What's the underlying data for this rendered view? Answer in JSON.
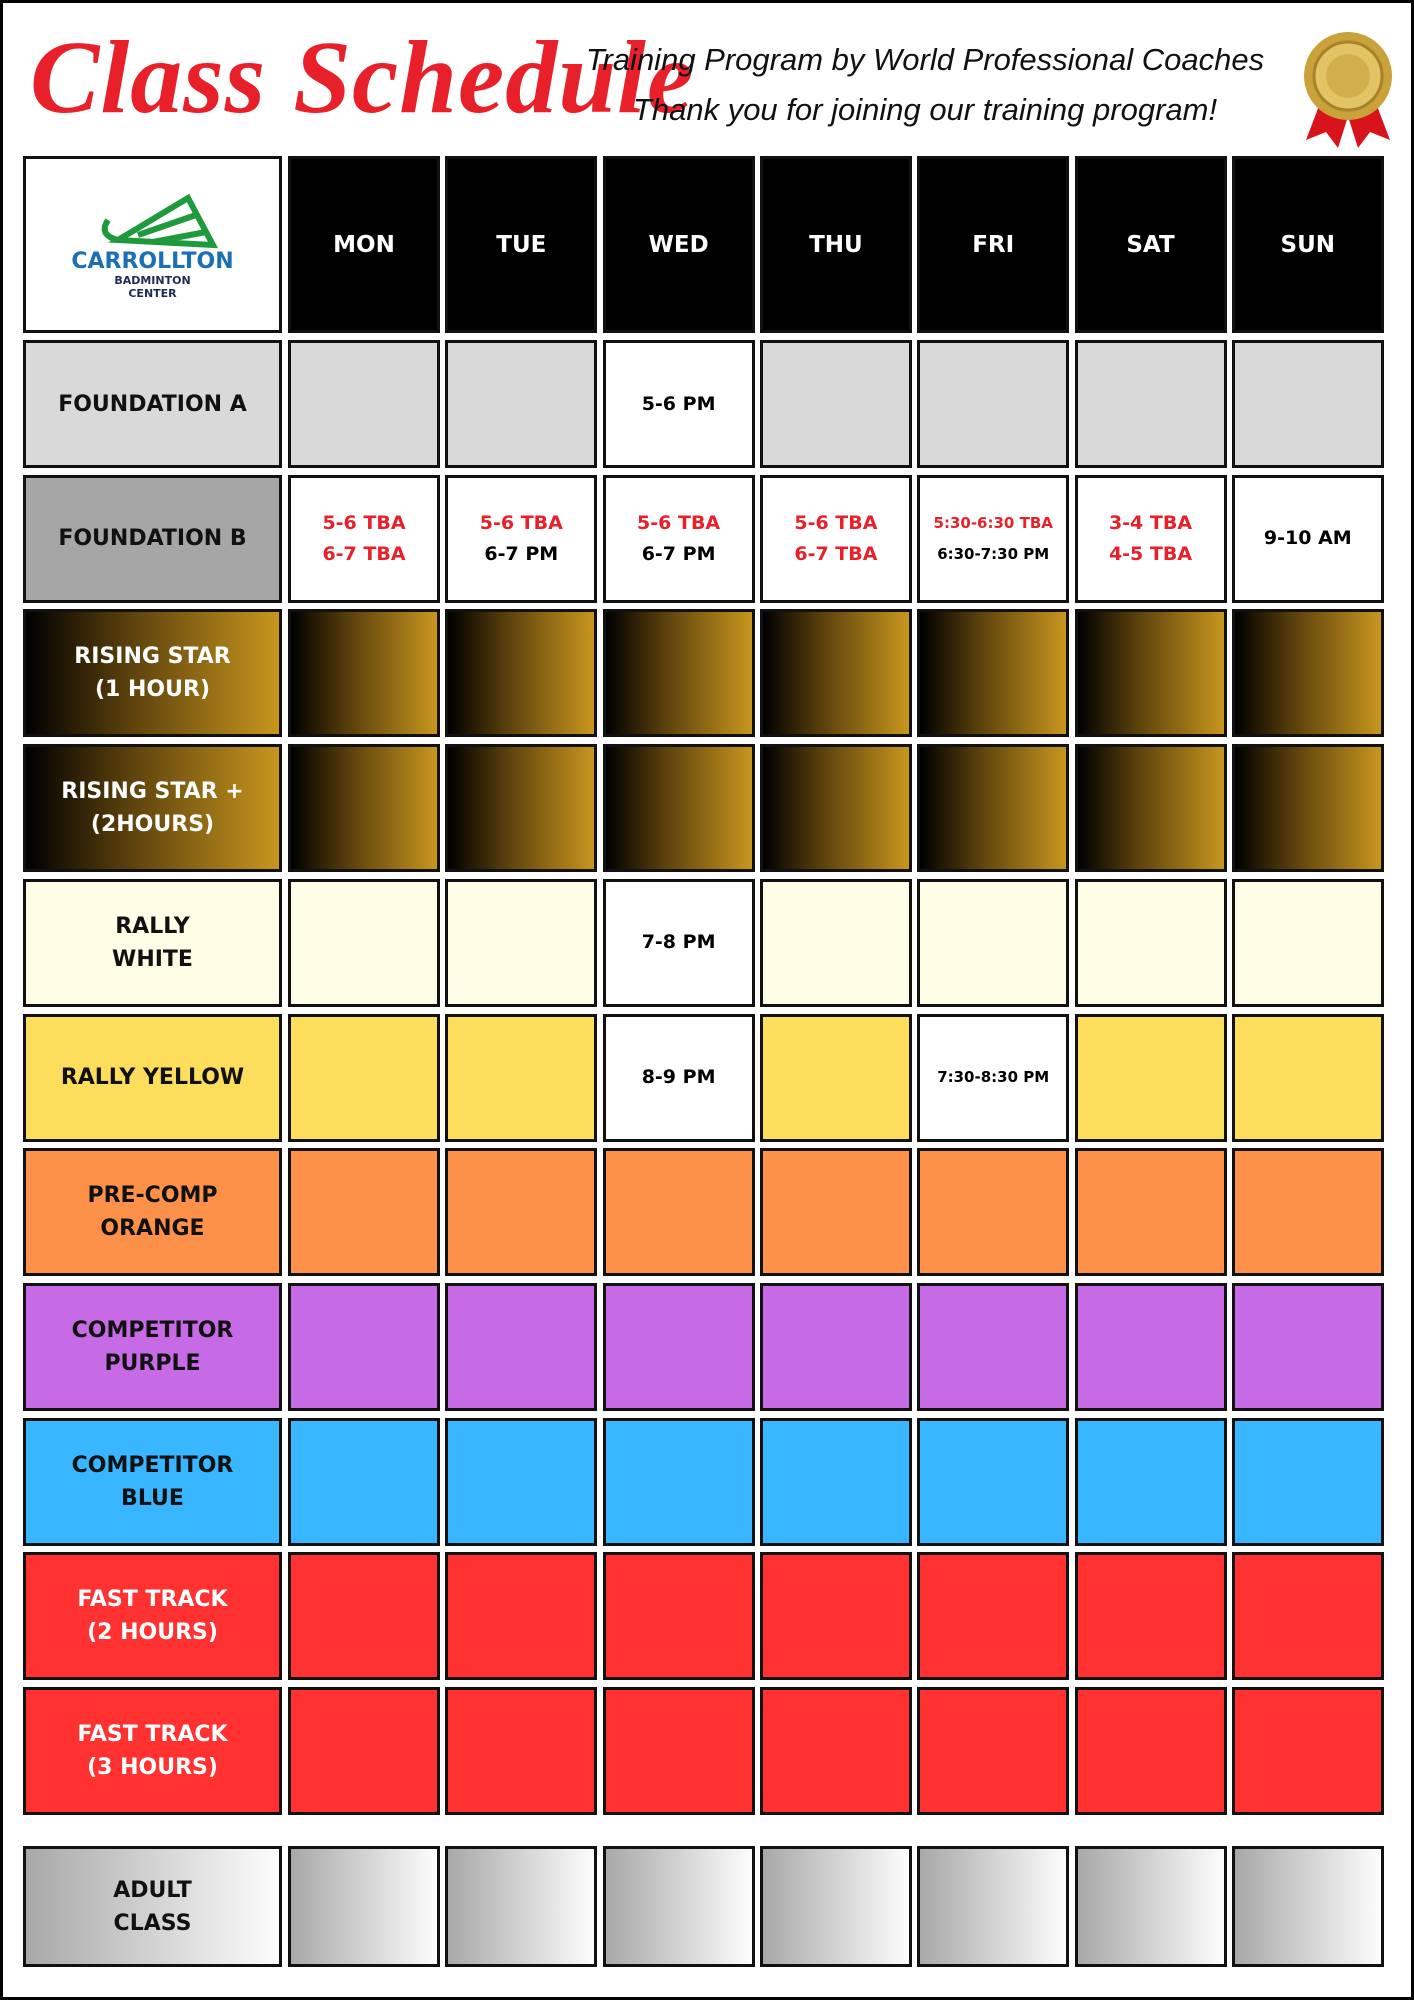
{
  "header": {
    "title": "Class Schedule",
    "subtitle_lines": [
      "Training Program by World Professional Coaches",
      "Thank you for joining our training program!"
    ]
  },
  "logo": {
    "name": "CARROLLTON",
    "subtitle_lines": [
      "BADMINTON",
      "CENTER"
    ]
  },
  "table": {
    "days": [
      "MON",
      "TUE",
      "WED",
      "THU",
      "FRI",
      "SAT",
      "SUN"
    ],
    "rows": [
      {
        "label": [
          "FOUNDATION A"
        ],
        "cells": [
          [],
          [],
          [
            {
              "text": "5-6 PM",
              "color": "#000000"
            }
          ],
          [],
          [],
          [],
          []
        ]
      },
      {
        "label": [
          "FOUNDATION B"
        ],
        "cells": [
          [
            {
              "text": "5-6 TBA",
              "color": "#e8202a"
            },
            {
              "text": "6-7 TBA",
              "color": "#e8202a"
            }
          ],
          [
            {
              "text": "5-6 TBA",
              "color": "#e8202a"
            },
            {
              "text": "6-7 PM",
              "color": "#000000"
            }
          ],
          [
            {
              "text": "5-6 TBA",
              "color": "#e8202a"
            },
            {
              "text": "6-7 PM",
              "color": "#000000"
            }
          ],
          [
            {
              "text": "5-6 TBA",
              "color": "#e8202a"
            },
            {
              "text": "6-7 TBA",
              "color": "#e8202a"
            }
          ],
          [
            {
              "text": "5:30-6:30 TBA",
              "color": "#e8202a"
            },
            {
              "text": "6:30-7:30 PM",
              "color": "#000000"
            }
          ],
          [
            {
              "text": "3-4 TBA",
              "color": "#e8202a"
            },
            {
              "text": "4-5 TBA",
              "color": "#e8202a"
            }
          ],
          [
            {
              "text": "9-10 AM",
              "color": "#000000"
            }
          ]
        ]
      },
      {
        "label": [
          "RISING STAR",
          "(1 HOUR)"
        ],
        "cells": [
          [],
          [],
          [],
          [],
          [],
          [],
          []
        ]
      },
      {
        "label": [
          "RISING STAR +",
          "(2HOURS)"
        ],
        "cells": [
          [],
          [],
          [],
          [],
          [],
          [],
          []
        ]
      },
      {
        "label": [
          "RALLY",
          "WHITE"
        ],
        "cells": [
          [],
          [],
          [
            {
              "text": "7-8 PM",
              "color": "#000000"
            }
          ],
          [],
          [],
          [],
          []
        ]
      },
      {
        "label": [
          "RALLY YELLOW"
        ],
        "cells": [
          [],
          [],
          [
            {
              "text": "8-9 PM",
              "color": "#000000"
            }
          ],
          [],
          [
            {
              "text": "7:30-8:30 PM",
              "color": "#000000"
            }
          ],
          [],
          []
        ]
      },
      {
        "label": [
          "PRE-COMP",
          "ORANGE"
        ],
        "cells": [
          [],
          [],
          [],
          [],
          [],
          [],
          []
        ]
      },
      {
        "label": [
          "COMPETITOR",
          "PURPLE"
        ],
        "cells": [
          [],
          [],
          [],
          [],
          [],
          [],
          []
        ]
      },
      {
        "label": [
          "COMPETITOR",
          "BLUE"
        ],
        "cells": [
          [],
          [],
          [],
          [],
          [],
          [],
          []
        ]
      },
      {
        "label": [
          "FAST TRACK",
          "(2 HOURS)"
        ],
        "cells": [
          [],
          [],
          [],
          [],
          [],
          [],
          []
        ]
      },
      {
        "label": [
          "FAST TRACK",
          "(3 HOURS)"
        ],
        "cells": [
          [],
          [],
          [],
          [],
          [],
          [],
          []
        ]
      },
      {
        "label": [
          "ADULT",
          "CLASS"
        ],
        "cells": [
          [],
          [],
          [],
          [],
          [],
          [],
          []
        ]
      }
    ]
  }
}
